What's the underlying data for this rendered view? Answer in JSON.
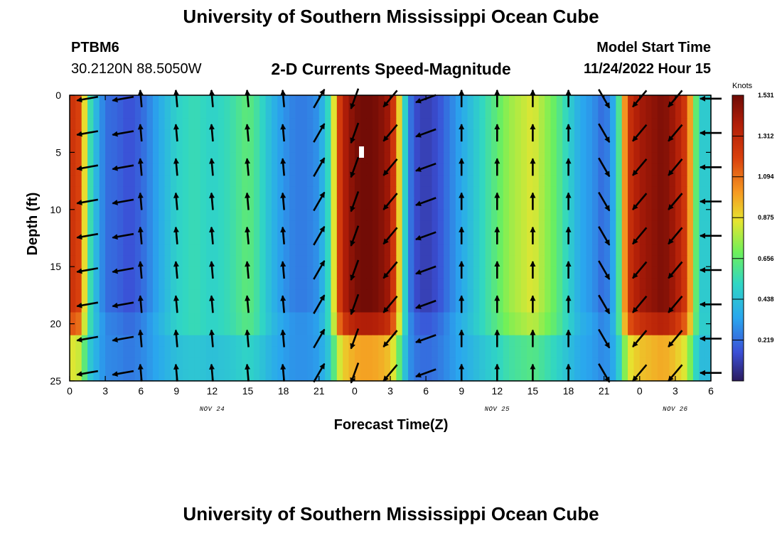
{
  "page": {
    "title_top": "University of Southern Mississippi Ocean Cube",
    "title_bottom": "University of Southern Mississippi Ocean Cube",
    "station": "PTBM6",
    "coords": "30.2120N  88.5050W",
    "subtitle": "2-D Currents Speed-Magnitude",
    "model_start_label": "Model Start Time",
    "model_start_value": "11/24/2022 Hour 15"
  },
  "chart_data": {
    "type": "heatmap",
    "title": "2-D Currents Speed-Magnitude",
    "xlabel": "Forecast Time(Z)",
    "ylabel": "Depth (ft)",
    "x_range_hours": [
      0,
      54
    ],
    "ylim": [
      0,
      25
    ],
    "y_ticks": [
      0,
      5,
      10,
      15,
      20,
      25
    ],
    "x_ticks": [
      {
        "h": 0,
        "label": "0"
      },
      {
        "h": 3,
        "label": "3"
      },
      {
        "h": 6,
        "label": "6"
      },
      {
        "h": 9,
        "label": "9"
      },
      {
        "h": 12,
        "label": "12"
      },
      {
        "h": 15,
        "label": "15"
      },
      {
        "h": 18,
        "label": "18"
      },
      {
        "h": 21,
        "label": "21"
      },
      {
        "h": 24,
        "label": "0"
      },
      {
        "h": 27,
        "label": "3"
      },
      {
        "h": 30,
        "label": "6"
      },
      {
        "h": 33,
        "label": "9"
      },
      {
        "h": 36,
        "label": "12"
      },
      {
        "h": 39,
        "label": "15"
      },
      {
        "h": 42,
        "label": "18"
      },
      {
        "h": 45,
        "label": "21"
      },
      {
        "h": 48,
        "label": "0"
      },
      {
        "h": 51,
        "label": "3"
      },
      {
        "h": 54,
        "label": "6"
      }
    ],
    "date_labels": [
      {
        "h": 12,
        "label": "NOV 24"
      },
      {
        "h": 36,
        "label": "NOV 25"
      },
      {
        "h": 51,
        "label": "NOV 26"
      }
    ],
    "colorbar": {
      "unit": "Knots",
      "min": 0,
      "max": 1.531,
      "ticks": [
        "1.531",
        "1.312",
        "1.094",
        "0.875",
        "0.656",
        "0.438",
        "0.219"
      ]
    },
    "speed_profile_knots": [
      {
        "h": 0,
        "v": 1.2
      },
      {
        "h": 0.5,
        "v": 1.3
      },
      {
        "h": 1,
        "v": 1.1
      },
      {
        "h": 1.5,
        "v": 0.65
      },
      {
        "h": 2,
        "v": 0.45
      },
      {
        "h": 3,
        "v": 0.22
      },
      {
        "h": 4,
        "v": 0.2
      },
      {
        "h": 5,
        "v": 0.15
      },
      {
        "h": 6,
        "v": 0.2
      },
      {
        "h": 7.5,
        "v": 0.35
      },
      {
        "h": 9,
        "v": 0.5
      },
      {
        "h": 10.5,
        "v": 0.55
      },
      {
        "h": 12,
        "v": 0.5
      },
      {
        "h": 13.5,
        "v": 0.55
      },
      {
        "h": 15,
        "v": 0.65
      },
      {
        "h": 16,
        "v": 0.55
      },
      {
        "h": 17,
        "v": 0.4
      },
      {
        "h": 18,
        "v": 0.3
      },
      {
        "h": 19,
        "v": 0.25
      },
      {
        "h": 20,
        "v": 0.25
      },
      {
        "h": 21,
        "v": 0.3
      },
      {
        "h": 22,
        "v": 0.6
      },
      {
        "h": 22.5,
        "v": 1.1
      },
      {
        "h": 23,
        "v": 1.35
      },
      {
        "h": 24,
        "v": 1.5
      },
      {
        "h": 25,
        "v": 1.53
      },
      {
        "h": 26,
        "v": 1.5
      },
      {
        "h": 27,
        "v": 1.4
      },
      {
        "h": 27.5,
        "v": 1.1
      },
      {
        "h": 28,
        "v": 0.7
      },
      {
        "h": 28.5,
        "v": 0.3
      },
      {
        "h": 29,
        "v": 0.15
      },
      {
        "h": 30,
        "v": 0.1
      },
      {
        "h": 31,
        "v": 0.15
      },
      {
        "h": 32,
        "v": 0.25
      },
      {
        "h": 33,
        "v": 0.35
      },
      {
        "h": 34,
        "v": 0.45
      },
      {
        "h": 35,
        "v": 0.55
      },
      {
        "h": 36,
        "v": 0.65
      },
      {
        "h": 37,
        "v": 0.75
      },
      {
        "h": 38,
        "v": 0.8
      },
      {
        "h": 39,
        "v": 0.85
      },
      {
        "h": 40,
        "v": 0.75
      },
      {
        "h": 41,
        "v": 0.65
      },
      {
        "h": 42,
        "v": 0.5
      },
      {
        "h": 43,
        "v": 0.35
      },
      {
        "h": 44,
        "v": 0.3
      },
      {
        "h": 45,
        "v": 0.2
      },
      {
        "h": 46,
        "v": 0.4
      },
      {
        "h": 46.5,
        "v": 0.8
      },
      {
        "h": 47,
        "v": 1.25
      },
      {
        "h": 48,
        "v": 1.4
      },
      {
        "h": 49,
        "v": 1.45
      },
      {
        "h": 50,
        "v": 1.5
      },
      {
        "h": 51,
        "v": 1.4
      },
      {
        "h": 52,
        "v": 1.2
      },
      {
        "h": 52.5,
        "v": 0.8
      },
      {
        "h": 53,
        "v": 0.5
      },
      {
        "h": 53.5,
        "v": 0.45
      },
      {
        "h": 54,
        "v": 0.5
      }
    ],
    "vector_columns": [
      {
        "h": 1.5,
        "angle_deg": 190,
        "len": "medium"
      },
      {
        "h": 4.5,
        "angle_deg": 190,
        "len": "medium"
      },
      {
        "h": 6,
        "angle_deg": 95,
        "len": "short"
      },
      {
        "h": 9,
        "angle_deg": 95,
        "len": "short"
      },
      {
        "h": 12,
        "angle_deg": 95,
        "len": "short"
      },
      {
        "h": 15,
        "angle_deg": 95,
        "len": "short"
      },
      {
        "h": 18,
        "angle_deg": 95,
        "len": "short"
      },
      {
        "h": 21,
        "angle_deg": 60,
        "len": "medium"
      },
      {
        "h": 24,
        "angle_deg": 250,
        "len": "medium"
      },
      {
        "h": 27,
        "angle_deg": 230,
        "len": "medium"
      },
      {
        "h": 30,
        "angle_deg": 200,
        "len": "medium"
      },
      {
        "h": 33,
        "angle_deg": 90,
        "len": "short"
      },
      {
        "h": 36,
        "angle_deg": 90,
        "len": "short"
      },
      {
        "h": 39,
        "angle_deg": 90,
        "len": "short"
      },
      {
        "h": 42,
        "angle_deg": 90,
        "len": "short"
      },
      {
        "h": 45,
        "angle_deg": 300,
        "len": "medium"
      },
      {
        "h": 48,
        "angle_deg": 230,
        "len": "medium"
      },
      {
        "h": 51,
        "angle_deg": 230,
        "len": "medium"
      },
      {
        "h": 54,
        "angle_deg": 180,
        "len": "medium"
      }
    ]
  }
}
